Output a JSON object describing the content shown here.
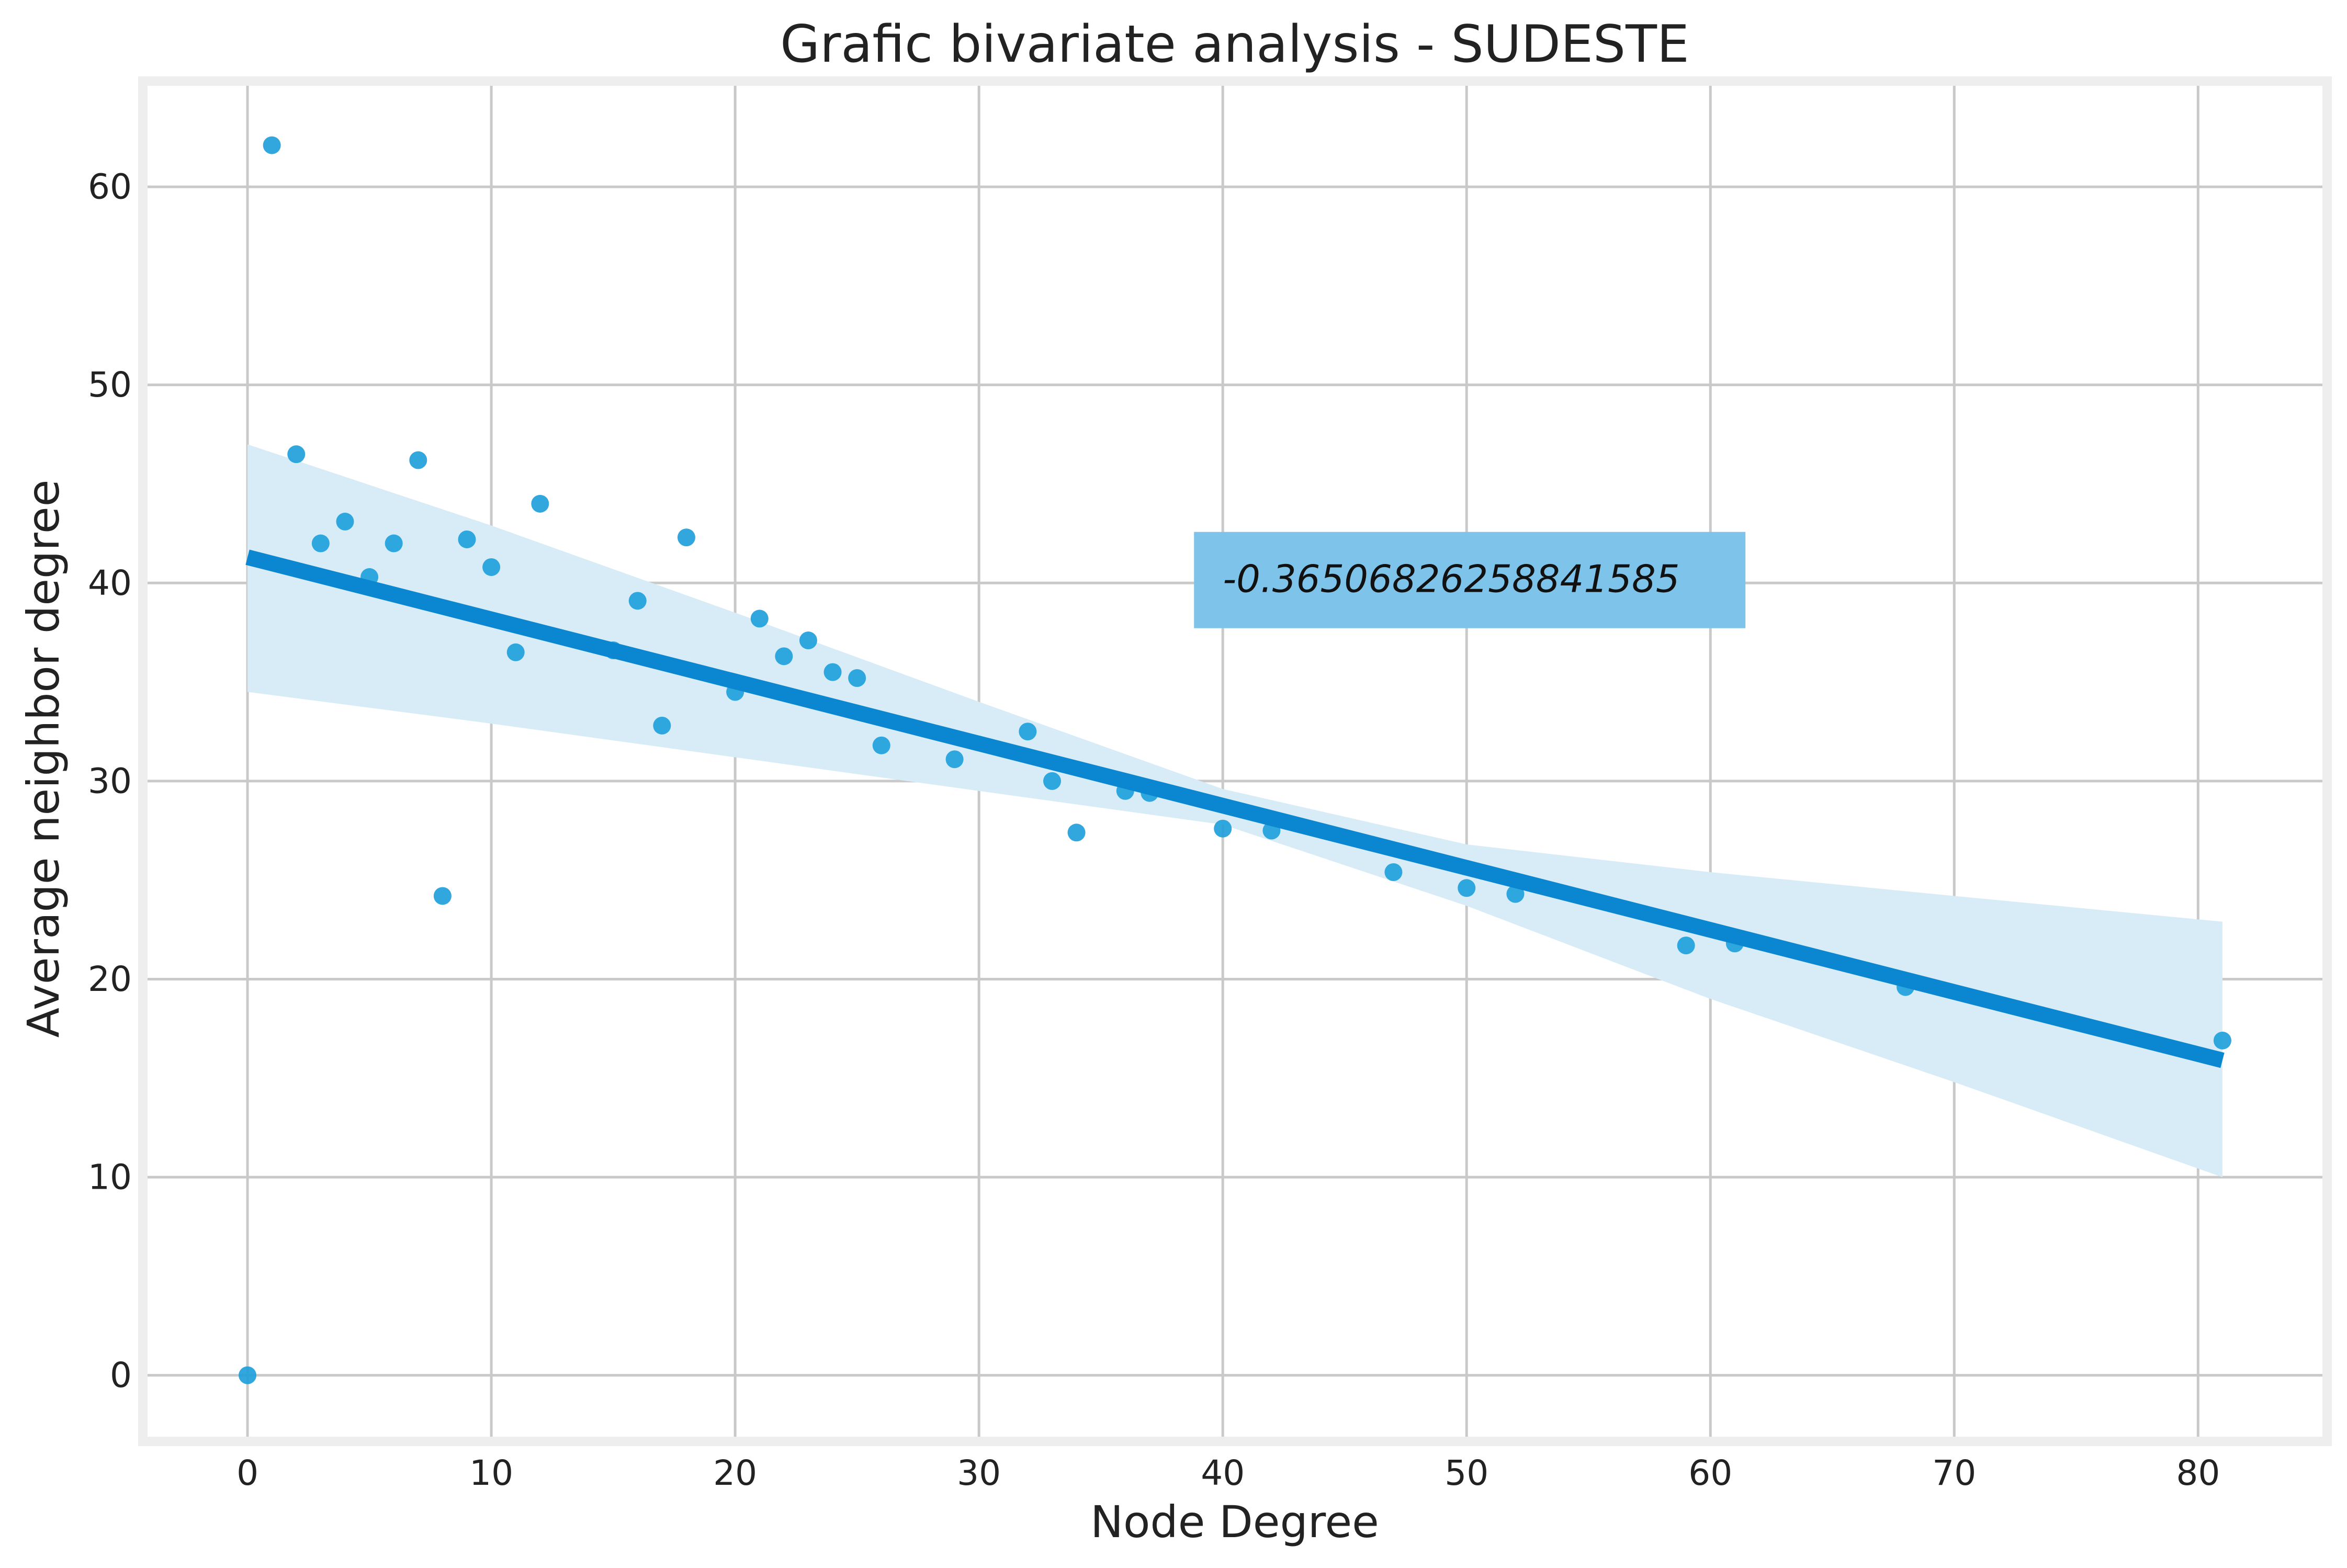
{
  "chart_data": {
    "type": "scatter",
    "title": "Grafic bivariate analysis - SUDESTE",
    "xlabel": "Node Degree",
    "ylabel": "Average neighbor degree",
    "xlim": [
      -4.1,
      85.1
    ],
    "ylim": [
      -3.1,
      65.1
    ],
    "xticks": [
      0,
      10,
      20,
      30,
      40,
      50,
      60,
      70,
      80
    ],
    "yticks": [
      0,
      10,
      20,
      30,
      40,
      50,
      60
    ],
    "grid": true,
    "points": [
      {
        "x": 0,
        "y": 0
      },
      {
        "x": 1,
        "y": 62.1
      },
      {
        "x": 2,
        "y": 46.5
      },
      {
        "x": 3,
        "y": 42.0
      },
      {
        "x": 4,
        "y": 43.1
      },
      {
        "x": 5,
        "y": 40.3
      },
      {
        "x": 6,
        "y": 42.0
      },
      {
        "x": 7,
        "y": 46.2
      },
      {
        "x": 8,
        "y": 24.2
      },
      {
        "x": 9,
        "y": 42.2
      },
      {
        "x": 10,
        "y": 40.8
      },
      {
        "x": 11,
        "y": 36.5
      },
      {
        "x": 12,
        "y": 44.0
      },
      {
        "x": 15,
        "y": 36.6
      },
      {
        "x": 16,
        "y": 39.1
      },
      {
        "x": 17,
        "y": 32.8
      },
      {
        "x": 18,
        "y": 42.3
      },
      {
        "x": 20,
        "y": 34.5
      },
      {
        "x": 21,
        "y": 38.2
      },
      {
        "x": 22,
        "y": 36.3
      },
      {
        "x": 23,
        "y": 37.1
      },
      {
        "x": 24,
        "y": 35.5
      },
      {
        "x": 25,
        "y": 35.2
      },
      {
        "x": 26,
        "y": 31.8
      },
      {
        "x": 29,
        "y": 31.1
      },
      {
        "x": 32,
        "y": 32.5
      },
      {
        "x": 33,
        "y": 30.0
      },
      {
        "x": 34,
        "y": 27.4
      },
      {
        "x": 36,
        "y": 29.5
      },
      {
        "x": 37,
        "y": 29.4
      },
      {
        "x": 40,
        "y": 27.6
      },
      {
        "x": 42,
        "y": 27.5
      },
      {
        "x": 47,
        "y": 25.4
      },
      {
        "x": 50,
        "y": 24.6
      },
      {
        "x": 52,
        "y": 24.3
      },
      {
        "x": 59,
        "y": 21.7
      },
      {
        "x": 61,
        "y": 21.8
      },
      {
        "x": 68,
        "y": 19.6
      },
      {
        "x": 81,
        "y": 16.9
      }
    ],
    "regression_line": {
      "x0": 0,
      "y0": 41.3,
      "x1": 81,
      "y1": 15.9
    },
    "confidence_band": {
      "x": [
        0,
        10,
        20,
        30,
        40,
        50,
        60,
        70,
        81
      ],
      "upper": [
        47.0,
        42.9,
        38.5,
        34.0,
        29.6,
        26.8,
        25.4,
        24.2,
        22.9
      ],
      "lower": [
        34.5,
        32.9,
        31.2,
        29.5,
        27.8,
        23.7,
        19.0,
        14.8,
        10.0
      ]
    },
    "annotation": {
      "text": "-0.36506826258841585",
      "x": 40,
      "y": 40.2
    },
    "colors": {
      "points": "#1f9fdb",
      "line": "#0a87d0",
      "band": "#d8ecf8",
      "annotation_box": "#7dc3ea",
      "grid": "#c9c9c9",
      "frame": "#eeeeee"
    }
  }
}
